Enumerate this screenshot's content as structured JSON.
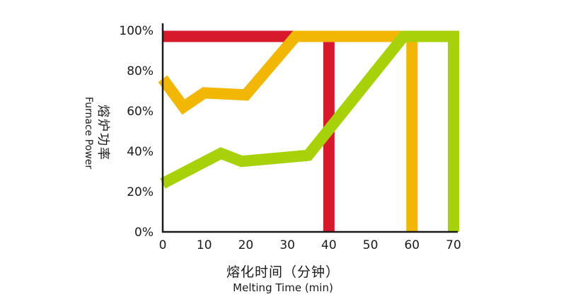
{
  "chart_data": {
    "type": "line",
    "xlabel_cn": "熔化时间（分钟）",
    "xlabel_en": "Melting Time (min)",
    "ylabel_cn": "熔炉功率",
    "ylabel_en": "Furnace Power",
    "xlim": [
      0,
      70
    ],
    "ylim": [
      0,
      100
    ],
    "x_ticks": [
      "0",
      "10",
      "20",
      "30",
      "40",
      "50",
      "60",
      "70"
    ],
    "y_ticks": [
      "0%",
      "20%",
      "40%",
      "60%",
      "80%",
      "100%"
    ],
    "series": [
      {
        "color": "#d7192d",
        "points": [
          [
            0,
            97
          ],
          [
            40,
            97
          ],
          [
            40,
            0
          ]
        ]
      },
      {
        "color": "#f2b705",
        "points": [
          [
            0,
            76
          ],
          [
            5,
            62
          ],
          [
            10,
            69
          ],
          [
            20,
            68
          ],
          [
            32,
            97
          ],
          [
            60,
            97
          ],
          [
            60,
            0
          ]
        ]
      },
      {
        "color": "#a7d20a",
        "points": [
          [
            0,
            24
          ],
          [
            14,
            39
          ],
          [
            19,
            35
          ],
          [
            35,
            38
          ],
          [
            58,
            97
          ],
          [
            70,
            97
          ],
          [
            70,
            0
          ]
        ]
      }
    ]
  }
}
